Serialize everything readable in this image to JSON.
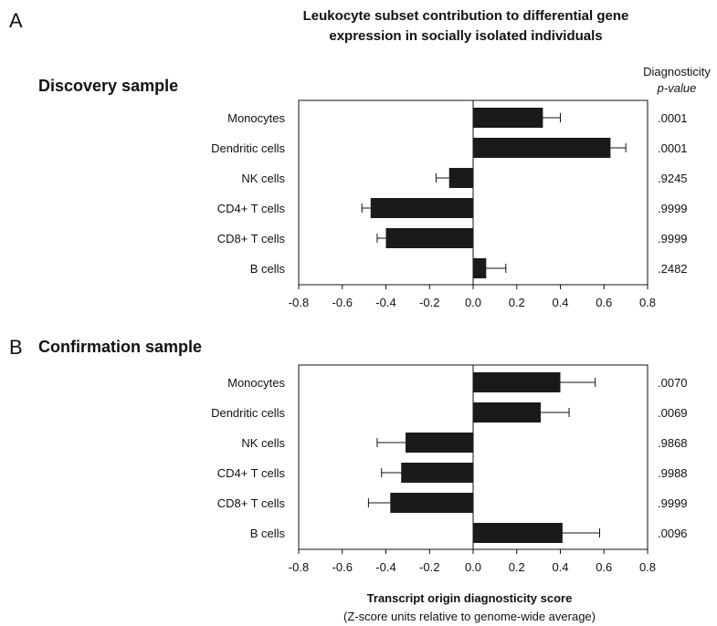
{
  "figure": {
    "title_line1": "Leukocyte subset contribution to differential gene",
    "title_line2": "expression in socially isolated individuals",
    "pvalue_header_line1": "Diagnosticity",
    "pvalue_header_line2": "p-value",
    "xlabel": "Transcript origin diagnosticity score",
    "xlabel_sub": "(Z-score units relative to genome-wide average)"
  },
  "chart_data": [
    {
      "type": "bar",
      "orientation": "horizontal",
      "panel_letter": "A",
      "title": "Discovery sample",
      "categories": [
        "Monocytes",
        "Dendritic cells",
        "NK cells",
        "CD4+ T cells",
        "CD8+ T cells",
        "B cells"
      ],
      "values": [
        0.32,
        0.63,
        -0.11,
        -0.47,
        -0.4,
        0.06
      ],
      "error": [
        0.08,
        0.07,
        0.06,
        0.04,
        0.04,
        0.09
      ],
      "p_values": [
        ".0001",
        ".0001",
        ".9245",
        ".9999",
        ".9999",
        ".2482"
      ],
      "xlim": [
        -0.8,
        0.8
      ],
      "xticks": [
        "-0.8",
        "-0.6",
        "-0.4",
        "-0.2",
        "0.0",
        "0.2",
        "0.4",
        "0.6",
        "0.8"
      ],
      "bar_color": "#1a1a1a"
    },
    {
      "type": "bar",
      "orientation": "horizontal",
      "panel_letter": "B",
      "title": "Confirmation sample",
      "categories": [
        "Monocytes",
        "Dendritic cells",
        "NK cells",
        "CD4+ T cells",
        "CD8+ T cells",
        "B cells"
      ],
      "values": [
        0.4,
        0.31,
        -0.31,
        -0.33,
        -0.38,
        0.41
      ],
      "error": [
        0.16,
        0.13,
        0.13,
        0.09,
        0.1,
        0.17
      ],
      "p_values": [
        ".0070",
        ".0069",
        ".9868",
        ".9988",
        ".9999",
        ".0096"
      ],
      "xlim": [
        -0.8,
        0.8
      ],
      "xticks": [
        "-0.8",
        "-0.6",
        "-0.4",
        "-0.2",
        "0.0",
        "0.2",
        "0.4",
        "0.6",
        "0.8"
      ],
      "bar_color": "#1a1a1a"
    }
  ]
}
